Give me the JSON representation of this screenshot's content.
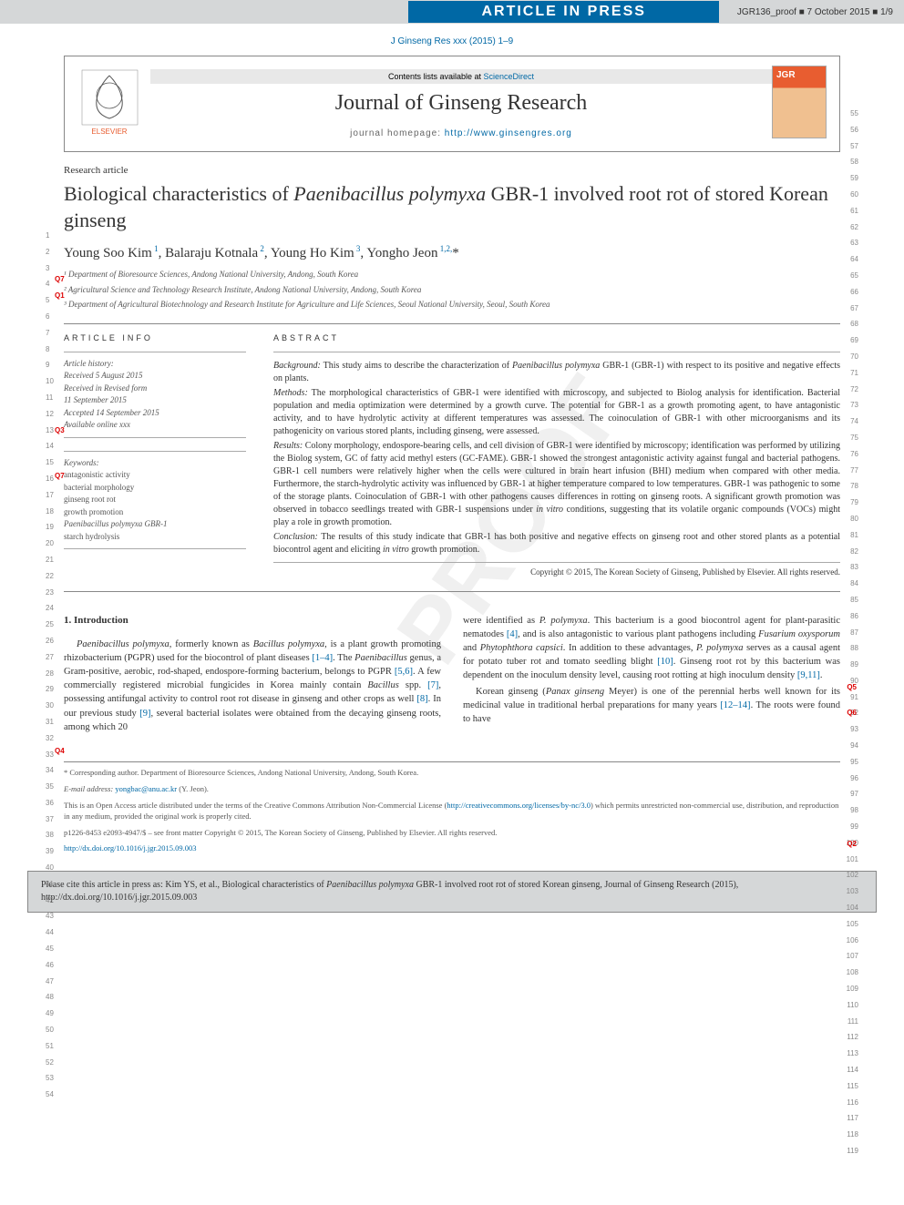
{
  "banner": {
    "title": "ARTICLE IN PRESS",
    "proof_info": "JGR136_proof ■ 7 October 2015 ■ 1/9"
  },
  "journal_citation": "J Ginseng Res xxx (2015) 1–9",
  "header": {
    "contents_text": "Contents lists available at ",
    "contents_link": "ScienceDirect",
    "journal_name": "Journal of Ginseng Research",
    "homepage_label": "journal homepage: ",
    "homepage_url": "http://www.ginsengres.org",
    "publisher": "ELSEVIER"
  },
  "article_type": "Research article",
  "title": "Biological characteristics of Paenibacillus polymyxa GBR-1 involved root rot of stored Korean ginseng",
  "authors_html": "Young Soo Kim ¹, Balaraju Kotnala ², Young Ho Kim ³, Yongho Jeon ¹,²,*",
  "affiliations": [
    "¹ Department of Bioresource Sciences, Andong National University, Andong, South Korea",
    "² Agricultural Science and Technology Research Institute, Andong National University, Andong, South Korea",
    "³ Department of Agricultural Biotechnology and Research Institute for Agriculture and Life Sciences, Seoul National University, Seoul, South Korea"
  ],
  "article_info": {
    "section_label": "ARTICLE INFO",
    "history_label": "Article history:",
    "history": [
      "Received 5 August 2015",
      "Received in Revised form",
      "11 September 2015",
      "Accepted 14 September 2015",
      "Available online xxx"
    ],
    "keywords_label": "Keywords:",
    "keywords": [
      "antagonistic activity",
      "bacterial morphology",
      "ginseng root rot",
      "growth promotion",
      "Paenibacillus polymyxa GBR-1",
      "starch hydrolysis"
    ]
  },
  "abstract": {
    "section_label": "ABSTRACT",
    "paragraphs": [
      "Background: This study aims to describe the characterization of Paenibacillus polymyxa GBR-1 (GBR-1) with respect to its positive and negative effects on plants.",
      "Methods: The morphological characteristics of GBR-1 were identified with microscopy, and subjected to Biolog analysis for identification. Bacterial population and media optimization were determined by a growth curve. The potential for GBR-1 as a growth promoting agent, to have antagonistic activity, and to have hydrolytic activity at different temperatures was assessed. The coinoculation of GBR-1 with other microorganisms and its pathogenicity on various stored plants, including ginseng, were assessed.",
      "Results: Colony morphology, endospore-bearing cells, and cell division of GBR-1 were identified by microscopy; identification was performed by utilizing the Biolog system, GC of fatty acid methyl esters (GC-FAME). GBR-1 showed the strongest antagonistic activity against fungal and bacterial pathogens. GBR-1 cell numbers were relatively higher when the cells were cultured in brain heart infusion (BHI) medium when compared with other media. Furthermore, the starch-hydrolytic activity was influenced by GBR-1 at higher temperature compared to low temperatures. GBR-1 was pathogenic to some of the storage plants. Coinoculation of GBR-1 with other pathogens causes differences in rotting on ginseng roots. A significant growth promotion was observed in tobacco seedlings treated with GBR-1 suspensions under in vitro conditions, suggesting that its volatile organic compounds (VOCs) might play a role in growth promotion.",
      "Conclusion: The results of this study indicate that GBR-1 has both positive and negative effects on ginseng root and other stored plants as a potential biocontrol agent and eliciting in vitro growth promotion."
    ],
    "copyright": "Copyright © 2015, The Korean Society of Ginseng, Published by Elsevier. All rights reserved."
  },
  "body": {
    "heading": "1. Introduction",
    "col1": "Paenibacillus polymyxa, formerly known as Bacillus polymyxa, is a plant growth promoting rhizobacterium (PGPR) used for the biocontrol of plant diseases [1–4]. The Paenibacillus genus, a Gram-positive, aerobic, rod-shaped, endospore-forming bacterium, belongs to PGPR [5,6]. A few commercially registered microbial fungicides in Korea mainly contain Bacillus spp. [7], possessing antifungal activity to control root rot disease in ginseng and other crops as well [8]. In our previous study [9], several bacterial isolates were obtained from the decaying ginseng roots, among which 20",
    "col2_p1": "were identified as P. polymyxa. This bacterium is a good biocontrol agent for plant-parasitic nematodes [4], and is also antagonistic to various plant pathogens including Fusarium oxysporum and Phytophthora capsici. In addition to these advantages, P. polymyxa serves as a causal agent for potato tuber rot and tomato seedling blight [10]. Ginseng root rot by this bacterium was dependent on the inoculum density level, causing root rotting at high inoculum density [9,11].",
    "col2_p2": "Korean ginseng (Panax ginseng Meyer) is one of the perennial herbs well known for its medicinal value in traditional herbal preparations for many years [12–14]. The roots were found to have"
  },
  "footer": {
    "corresponding": "* Corresponding author. Department of Bioresource Sciences, Andong National University, Andong, South Korea.",
    "email_label": "E-mail address: ",
    "email": "yongbac@anu.ac.kr",
    "email_name": " (Y. Jeon).",
    "license": "This is an Open Access article distributed under the terms of the Creative Commons Attribution Non-Commercial License (http://creativecommons.org/licenses/by-nc/3.0) which permits unrestricted non-commercial use, distribution, and reproduction in any medium, provided the original work is properly cited.",
    "front_matter": "p1226-8453 e2093-4947/$ – see front matter Copyright © 2015, The Korean Society of Ginseng, Published by Elsevier. All rights reserved.",
    "doi": "http://dx.doi.org/10.1016/j.jgr.2015.09.003"
  },
  "cite_box": "Please cite this article in press as: Kim YS, et al., Biological characteristics of Paenibacillus polymyxa GBR-1 involved root rot of stored Korean ginseng, Journal of Ginseng Research (2015), http://dx.doi.org/10.1016/j.jgr.2015.09.003",
  "queries": {
    "q07a": "Q7",
    "q1": "Q1",
    "q3": "Q3",
    "q07b": "Q7",
    "q4": "Q4",
    "q5": "Q5",
    "q6": "Q6",
    "q2": "Q2"
  },
  "line_numbers": {
    "left_start": 1,
    "left_end": 54,
    "right_start": 55,
    "right_end": 119
  },
  "colors": {
    "banner_bg": "#d5d7d8",
    "banner_title_bg": "#0068a5",
    "link": "#0068a5",
    "text": "#333333",
    "muted": "#555555",
    "query": "#d00000"
  }
}
